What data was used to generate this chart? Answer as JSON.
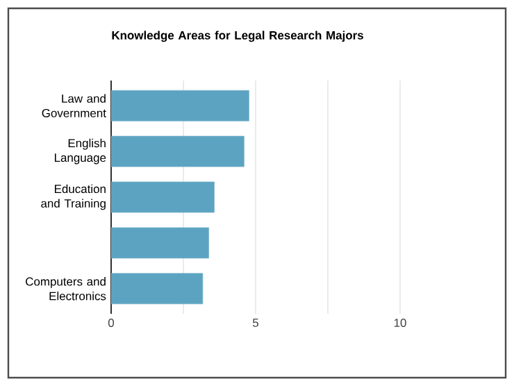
{
  "chart_data": {
    "type": "bar",
    "orientation": "horizontal",
    "title": "Knowledge Areas for Legal Research Majors",
    "categories": [
      "Law and Government",
      "English Language",
      "Education and Training",
      null,
      "Computers and Electronics"
    ],
    "values": [
      4.77,
      4.6,
      3.57,
      3.38,
      3.17
    ],
    "color": "#5ba3c1",
    "xlim": [
      0,
      10
    ],
    "xticks": [
      0,
      {
        "value": 2.5,
        "label": null
      },
      5,
      {
        "value": 7.5,
        "label": null
      },
      10
    ],
    "grid": "x"
  }
}
